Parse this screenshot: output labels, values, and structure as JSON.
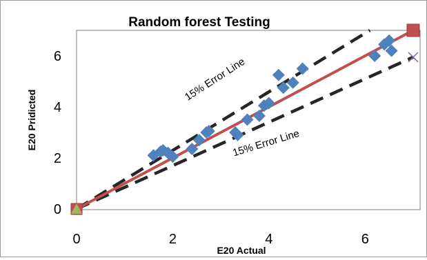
{
  "chart_data": {
    "type": "scatter",
    "title": "Random forest Testing",
    "xlabel": "E20 Actual",
    "ylabel": "E20 Pridicted",
    "xlim": [
      0,
      7
    ],
    "ylim": [
      0,
      7
    ],
    "xticks": [
      0,
      2,
      4,
      6
    ],
    "yticks": [
      0,
      2,
      4,
      6
    ],
    "grid": false,
    "legend": "none",
    "series": [
      {
        "name": "",
        "marker": "diamond",
        "color": "#4f81bd",
        "points": [
          [
            0,
            0
          ],
          [
            1.6,
            2.1
          ],
          [
            1.75,
            2.25
          ],
          [
            1.8,
            2.3
          ],
          [
            1.9,
            2.2
          ],
          [
            2.0,
            2.05
          ],
          [
            2.4,
            2.35
          ],
          [
            2.55,
            2.7
          ],
          [
            2.7,
            3.0
          ],
          [
            2.75,
            3.05
          ],
          [
            3.3,
            3.0
          ],
          [
            3.35,
            2.9
          ],
          [
            3.55,
            3.5
          ],
          [
            3.8,
            3.65
          ],
          [
            3.9,
            4.05
          ],
          [
            4.0,
            4.15
          ],
          [
            4.2,
            5.25
          ],
          [
            4.3,
            4.75
          ],
          [
            4.5,
            4.95
          ],
          [
            4.7,
            5.5
          ],
          [
            6.2,
            6.0
          ],
          [
            6.4,
            6.45
          ],
          [
            6.5,
            6.6
          ],
          [
            6.55,
            6.2
          ]
        ]
      }
    ],
    "reference_lines": [
      {
        "role": "fit",
        "color": "#c0504d",
        "style": "solid",
        "points": [
          [
            0,
            0
          ],
          [
            7,
            7
          ]
        ],
        "end_marker": "square"
      },
      {
        "role": "upper",
        "color": "#262626",
        "style": "dashed",
        "points": [
          [
            0,
            0
          ],
          [
            6.1,
            7.0
          ]
        ]
      },
      {
        "role": "lower",
        "color": "#262626",
        "style": "dashed",
        "points": [
          [
            0,
            0
          ],
          [
            7,
            5.95
          ]
        ],
        "end_marker": "x"
      }
    ],
    "annotations": [
      {
        "text": "15% Error Line",
        "role": "upper"
      },
      {
        "text": "15% Error Line",
        "role": "lower"
      }
    ],
    "origin_marker_color": "#9bbb59"
  }
}
